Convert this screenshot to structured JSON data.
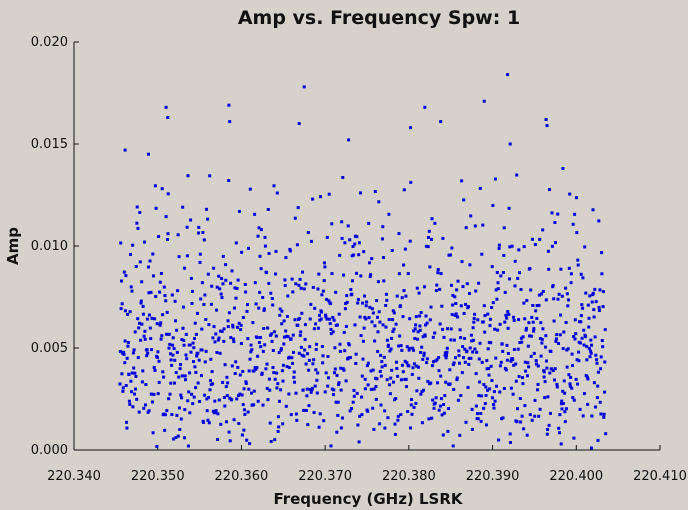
{
  "chart_data": {
    "type": "scatter",
    "title": "Amp vs. Frequency Spw: 1",
    "xlabel": "Frequency (GHz) LSRK",
    "ylabel": "Amp",
    "xlim": [
      220.34,
      220.41
    ],
    "ylim": [
      0.0,
      0.02
    ],
    "xticks": [
      "220.340",
      "220.350",
      "220.360",
      "220.370",
      "220.380",
      "220.390",
      "220.400",
      "220.410"
    ],
    "yticks": [
      "0.000",
      "0.005",
      "0.010",
      "0.015",
      "0.020"
    ],
    "grid": false,
    "marker_color": "#0000e0",
    "x_range_of_points": [
      220.3455,
      220.4035
    ],
    "points_per_channel": 1,
    "channel_count": 1350,
    "highlighted_points": [
      {
        "x": 220.3461,
        "y": 0.0147
      },
      {
        "x": 220.3489,
        "y": 0.0145
      },
      {
        "x": 220.351,
        "y": 0.0168
      },
      {
        "x": 220.3512,
        "y": 0.0163
      },
      {
        "x": 220.3585,
        "y": 0.0169
      },
      {
        "x": 220.3586,
        "y": 0.0161
      },
      {
        "x": 220.3669,
        "y": 0.016
      },
      {
        "x": 220.3675,
        "y": 0.0178
      },
      {
        "x": 220.3728,
        "y": 0.0152
      },
      {
        "x": 220.3802,
        "y": 0.0158
      },
      {
        "x": 220.3819,
        "y": 0.0168
      },
      {
        "x": 220.3838,
        "y": 0.0161
      },
      {
        "x": 220.389,
        "y": 0.0171
      },
      {
        "x": 220.3918,
        "y": 0.0184
      },
      {
        "x": 220.3921,
        "y": 0.015
      },
      {
        "x": 220.3964,
        "y": 0.0162
      },
      {
        "x": 220.3965,
        "y": 0.0159
      },
      {
        "x": 220.3984,
        "y": 0.0138
      },
      {
        "x": 220.3532,
        "y": 0.0006
      },
      {
        "x": 220.3707,
        "y": 0.0002
      },
      {
        "x": 220.3853,
        "y": 0.0002
      },
      {
        "x": 220.3982,
        "y": 0.0003
      },
      {
        "x": 220.4018,
        "y": 0.0001
      }
    ]
  }
}
